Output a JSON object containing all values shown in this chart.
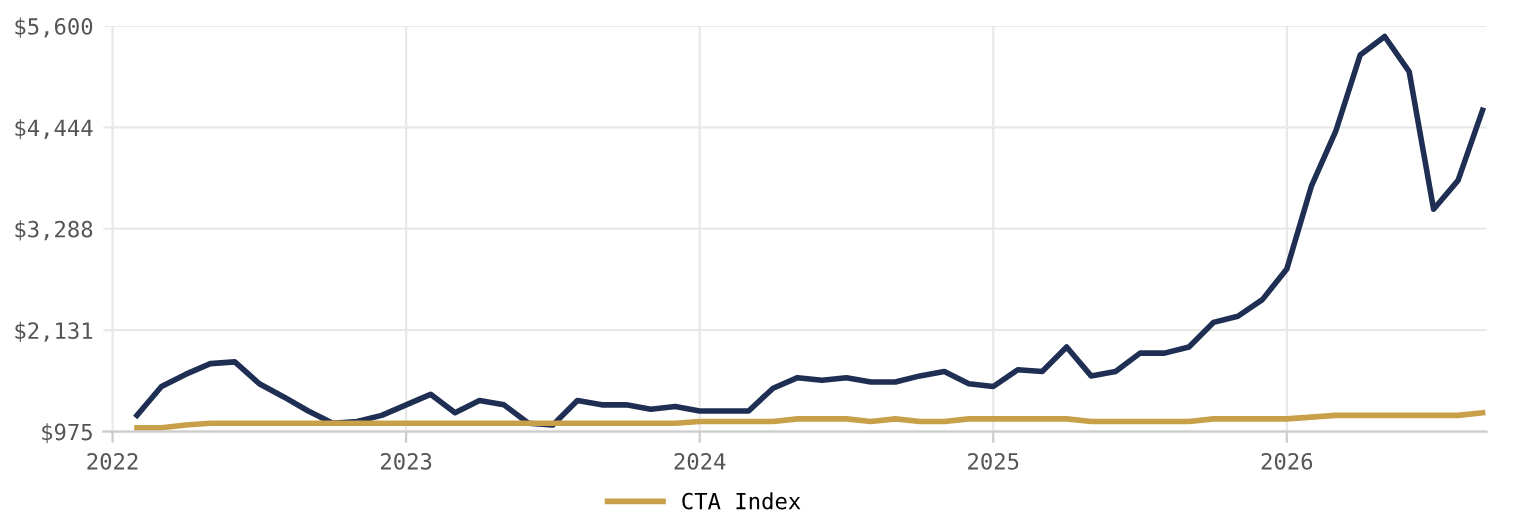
{
  "chart_data": {
    "type": "line",
    "x": [
      "2022-02",
      "2022-03",
      "2022-04",
      "2022-05",
      "2022-06",
      "2022-07",
      "2022-08",
      "2022-09",
      "2022-10",
      "2022-11",
      "2022-12",
      "2023-01",
      "2023-02",
      "2023-03",
      "2023-04",
      "2023-05",
      "2023-06",
      "2023-07",
      "2023-08",
      "2023-09",
      "2023-10",
      "2023-11",
      "2023-12",
      "2024-01",
      "2024-02",
      "2024-03",
      "2024-04",
      "2024-05",
      "2024-06",
      "2024-07",
      "2024-08",
      "2024-09",
      "2024-10",
      "2024-11",
      "2024-12",
      "2025-01",
      "2025-02",
      "2025-03",
      "2025-04",
      "2025-05",
      "2025-06",
      "2025-07",
      "2025-08",
      "2025-09",
      "2025-10",
      "2025-11",
      "2025-12",
      "2026-01",
      "2026-02",
      "2026-03",
      "2026-04",
      "2026-05",
      "2026-06",
      "2026-07",
      "2026-08",
      "2026-09"
    ],
    "series": [
      {
        "color": "#1f2f54",
        "values": [
          1160,
          1490,
          1630,
          1750,
          1770,
          1520,
          1370,
          1210,
          1070,
          1090,
          1160,
          1280,
          1400,
          1190,
          1330,
          1280,
          1070,
          1050,
          1330,
          1280,
          1280,
          1230,
          1260,
          1210,
          1210,
          1210,
          1470,
          1590,
          1560,
          1590,
          1540,
          1540,
          1610,
          1660,
          1520,
          1490,
          1680,
          1660,
          1940,
          1610,
          1660,
          1870,
          1870,
          1940,
          2220,
          2290,
          2480,
          2830,
          3770,
          4400,
          5270,
          5480,
          5080,
          3510,
          3840,
          4640
        ]
      },
      {
        "name": "CTA Index",
        "color": "#c9a04a",
        "values": [
          1020,
          1020,
          1050,
          1070,
          1070,
          1070,
          1070,
          1070,
          1070,
          1070,
          1070,
          1070,
          1070,
          1070,
          1070,
          1070,
          1070,
          1070,
          1070,
          1070,
          1070,
          1070,
          1070,
          1090,
          1090,
          1090,
          1090,
          1120,
          1120,
          1120,
          1090,
          1120,
          1090,
          1090,
          1120,
          1120,
          1120,
          1120,
          1120,
          1090,
          1090,
          1090,
          1090,
          1090,
          1120,
          1120,
          1120,
          1120,
          1140,
          1160,
          1160,
          1160,
          1160,
          1160,
          1160,
          1190
        ]
      }
    ],
    "xlim": [
      "2021-12-20",
      "2026-09-06"
    ],
    "xticks": [
      {
        "value": "2022-01-01",
        "label": "2022"
      },
      {
        "value": "2023-01-01",
        "label": "2023"
      },
      {
        "value": "2024-01-01",
        "label": "2024"
      },
      {
        "value": "2025-01-01",
        "label": "2025"
      },
      {
        "value": "2026-01-01",
        "label": "2026"
      }
    ],
    "ylim": [
      975,
      5600
    ],
    "yticks": [
      {
        "value": 975,
        "label": "$975"
      },
      {
        "value": 2131,
        "label": "$2,131"
      },
      {
        "value": 3288,
        "label": "$3,288"
      },
      {
        "value": 4444,
        "label": "$4,444"
      },
      {
        "value": 5600,
        "label": "$5,600"
      }
    ],
    "grid": true,
    "legend": "bottom",
    "marker": "none",
    "line_style": "solid"
  }
}
